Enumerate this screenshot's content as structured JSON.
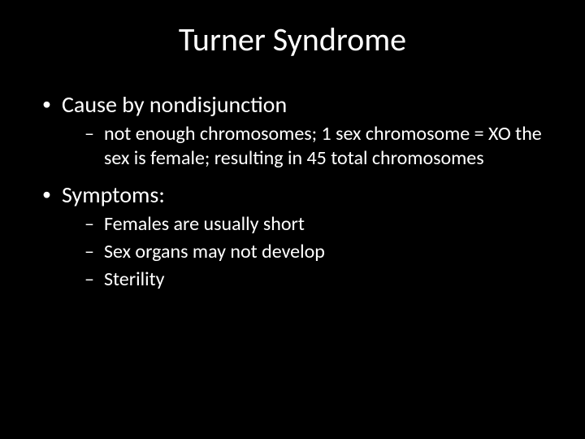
{
  "slide": {
    "background_color": "#000000",
    "text_color": "#ffffff",
    "font_family": "Calibri",
    "title": {
      "text": "Turner Syndrome",
      "fontsize": 40,
      "align": "center"
    },
    "bullets": [
      {
        "text": "Cause by nondisjunction",
        "fontsize": 28,
        "sub": [
          {
            "text": "not enough chromosomes;  1 sex chromosome = XO the sex is female; resulting in 45 total chromosomes",
            "fontsize": 24
          }
        ]
      },
      {
        "text": "Symptoms:",
        "fontsize": 28,
        "sub": [
          {
            "text": "Females are usually short",
            "fontsize": 24
          },
          {
            "text": "Sex organs may not develop",
            "fontsize": 24
          },
          {
            "text": "Sterility",
            "fontsize": 24
          }
        ]
      }
    ]
  }
}
